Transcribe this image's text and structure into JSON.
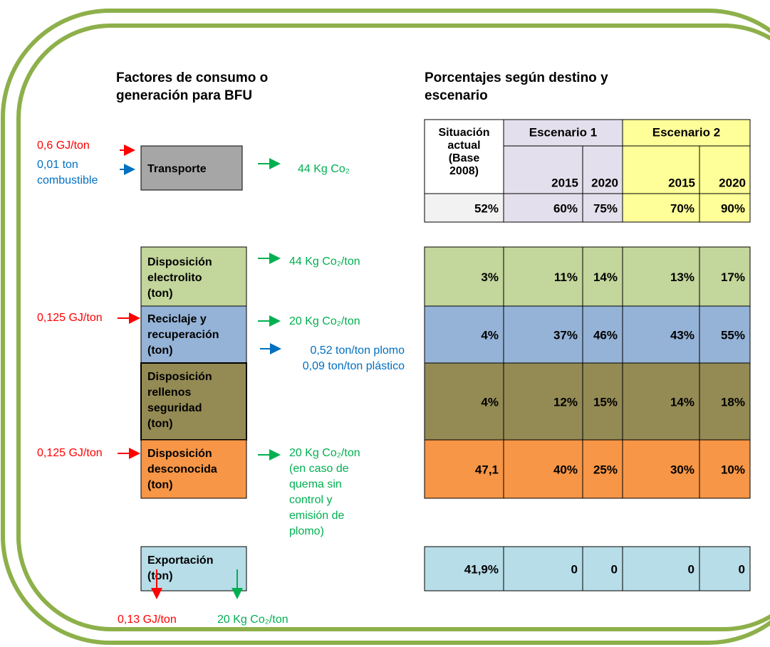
{
  "headings": {
    "left": [
      "Factores de consumo o",
      "generación para BFU"
    ],
    "right": [
      "Porcentajes según destino y",
      "escenario"
    ]
  },
  "process_boxes": [
    {
      "label": [
        "Transporte"
      ]
    },
    {
      "label": [
        "Disposición",
        "electrolito",
        "(ton)"
      ]
    },
    {
      "label": [
        "Reciclaje y",
        "recuperación",
        "(ton)"
      ]
    },
    {
      "label": [
        "Disposición",
        "rellenos",
        "seguridad",
        "(ton)"
      ]
    },
    {
      "label": [
        "Disposición",
        "desconocida",
        "(ton)"
      ]
    },
    {
      "label": [
        "Exportación",
        "(ton)"
      ]
    }
  ],
  "annotations": {
    "transport_in": [
      "0,6 GJ/ton"
    ],
    "transport_fuel": [
      "0,01 ton",
      "combustible"
    ],
    "transport_out": [
      "44 Kg Co₂"
    ],
    "electrolito_out": [
      "44 Kg Co₂/ton"
    ],
    "reciclaje_in": [
      "0,125 GJ/ton"
    ],
    "reciclaje_out": [
      "20 Kg Co₂/ton"
    ],
    "reciclaje_products": [
      "0,52 ton/ton plomo",
      "0,09 ton/ton plástico"
    ],
    "desconocida_in": [
      "0,125 GJ/ton"
    ],
    "desconocida_out": [
      "20 Kg Co₂/ton",
      "(en caso de",
      "quema sin",
      "control y",
      "emisión de",
      "plomo)"
    ],
    "export_energy": [
      "0,13 GJ/ton"
    ],
    "export_co2": [
      "20 Kg Co₂/ton"
    ]
  },
  "table": {
    "base_header": [
      "Situación",
      "actual",
      "(Base",
      "2008)"
    ],
    "scenarios": [
      {
        "name": "Escenario 1",
        "years": [
          "2015",
          "2020"
        ]
      },
      {
        "name": "Escenario 2",
        "years": [
          "2015",
          "2020"
        ]
      }
    ],
    "current_row": [
      "52%",
      "60%",
      "75%",
      "70%",
      "90%"
    ],
    "rows": [
      [
        "3%",
        "11%",
        "14%",
        "13%",
        "17%"
      ],
      [
        "4%",
        "37%",
        "46%",
        "43%",
        "55%"
      ],
      [
        "4%",
        "12%",
        "15%",
        "14%",
        "18%"
      ],
      [
        "47,1",
        "40%",
        "25%",
        "30%",
        "10%"
      ]
    ],
    "export_row": [
      "41,9%",
      "0",
      "0",
      "0",
      "0"
    ]
  }
}
